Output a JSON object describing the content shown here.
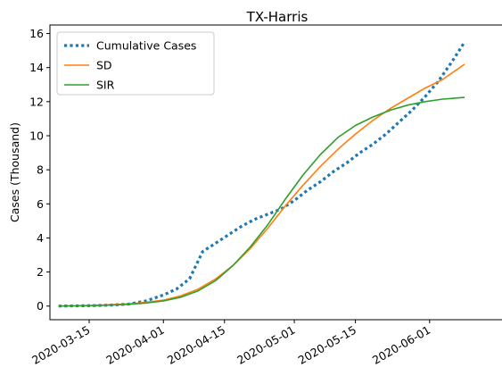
{
  "chart_data": {
    "type": "line",
    "title": "TX-Harris",
    "xlabel": "",
    "ylabel": "Cases (Thousand)",
    "x_type": "date",
    "xlim": [
      "2020-03-06",
      "2020-06-18"
    ],
    "ylim": [
      -0.8,
      16.5
    ],
    "x_ticks": [
      "2020-03-15",
      "2020-04-01",
      "2020-04-15",
      "2020-05-01",
      "2020-05-15",
      "2020-06-01"
    ],
    "y_ticks": [
      0,
      2,
      4,
      6,
      8,
      10,
      12,
      14,
      16
    ],
    "grid": false,
    "legend_position": "top-left",
    "series": [
      {
        "name": "Cumulative Cases",
        "color": "#1f77b4",
        "style": "dotted",
        "points": [
          [
            "2020-03-08",
            0.0
          ],
          [
            "2020-03-12",
            0.01
          ],
          [
            "2020-03-16",
            0.03
          ],
          [
            "2020-03-20",
            0.06
          ],
          [
            "2020-03-24",
            0.12
          ],
          [
            "2020-03-28",
            0.3
          ],
          [
            "2020-04-01",
            0.65
          ],
          [
            "2020-04-04",
            1.0
          ],
          [
            "2020-04-07",
            1.6
          ],
          [
            "2020-04-10",
            3.2
          ],
          [
            "2020-04-13",
            3.7
          ],
          [
            "2020-04-16",
            4.2
          ],
          [
            "2020-04-19",
            4.7
          ],
          [
            "2020-04-22",
            5.1
          ],
          [
            "2020-04-25",
            5.4
          ],
          [
            "2020-04-28",
            5.7
          ],
          [
            "2020-05-01",
            6.2
          ],
          [
            "2020-05-04",
            6.8
          ],
          [
            "2020-05-07",
            7.3
          ],
          [
            "2020-05-10",
            7.9
          ],
          [
            "2020-05-13",
            8.4
          ],
          [
            "2020-05-16",
            9.0
          ],
          [
            "2020-05-19",
            9.5
          ],
          [
            "2020-05-22",
            10.1
          ],
          [
            "2020-05-25",
            10.8
          ],
          [
            "2020-05-28",
            11.5
          ],
          [
            "2020-05-31",
            12.3
          ],
          [
            "2020-06-03",
            13.2
          ],
          [
            "2020-06-06",
            14.3
          ],
          [
            "2020-06-09",
            15.5
          ]
        ]
      },
      {
        "name": "SD",
        "color": "#ff7f0e",
        "style": "solid",
        "points": [
          [
            "2020-03-08",
            0.0
          ],
          [
            "2020-03-12",
            0.02
          ],
          [
            "2020-03-16",
            0.04
          ],
          [
            "2020-03-20",
            0.08
          ],
          [
            "2020-03-24",
            0.13
          ],
          [
            "2020-03-28",
            0.22
          ],
          [
            "2020-04-01",
            0.35
          ],
          [
            "2020-04-05",
            0.6
          ],
          [
            "2020-04-09",
            1.0
          ],
          [
            "2020-04-13",
            1.6
          ],
          [
            "2020-04-17",
            2.4
          ],
          [
            "2020-04-21",
            3.4
          ],
          [
            "2020-04-25",
            4.6
          ],
          [
            "2020-04-29",
            5.9
          ],
          [
            "2020-05-03",
            7.1
          ],
          [
            "2020-05-07",
            8.2
          ],
          [
            "2020-05-11",
            9.2
          ],
          [
            "2020-05-15",
            10.1
          ],
          [
            "2020-05-19",
            10.9
          ],
          [
            "2020-05-23",
            11.6
          ],
          [
            "2020-05-27",
            12.2
          ],
          [
            "2020-05-31",
            12.8
          ],
          [
            "2020-06-04",
            13.3
          ],
          [
            "2020-06-09",
            14.2
          ]
        ]
      },
      {
        "name": "SIR",
        "color": "#2ca02c",
        "style": "solid",
        "points": [
          [
            "2020-03-08",
            0.0
          ],
          [
            "2020-03-12",
            0.01
          ],
          [
            "2020-03-16",
            0.03
          ],
          [
            "2020-03-20",
            0.06
          ],
          [
            "2020-03-24",
            0.1
          ],
          [
            "2020-03-28",
            0.18
          ],
          [
            "2020-04-01",
            0.3
          ],
          [
            "2020-04-05",
            0.52
          ],
          [
            "2020-04-09",
            0.9
          ],
          [
            "2020-04-13",
            1.5
          ],
          [
            "2020-04-17",
            2.4
          ],
          [
            "2020-04-21",
            3.5
          ],
          [
            "2020-04-25",
            4.8
          ],
          [
            "2020-04-29",
            6.3
          ],
          [
            "2020-05-03",
            7.7
          ],
          [
            "2020-05-07",
            8.9
          ],
          [
            "2020-05-11",
            9.9
          ],
          [
            "2020-05-15",
            10.6
          ],
          [
            "2020-05-19",
            11.1
          ],
          [
            "2020-05-23",
            11.5
          ],
          [
            "2020-05-27",
            11.8
          ],
          [
            "2020-05-31",
            12.0
          ],
          [
            "2020-06-04",
            12.15
          ],
          [
            "2020-06-09",
            12.25
          ]
        ]
      }
    ]
  }
}
